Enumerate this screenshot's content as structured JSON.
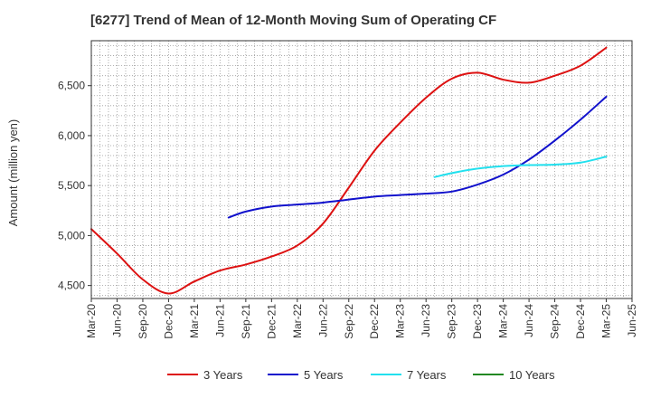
{
  "chart_data": {
    "type": "line",
    "title": "[6277]  Trend of Mean of 12-Month Moving Sum of Operating CF",
    "xlabel": "",
    "ylabel": "Amount (million yen)",
    "ylim": [
      4370,
      6950
    ],
    "yticks": [
      4500,
      5000,
      5500,
      6000,
      6500
    ],
    "ytick_labels": [
      "4,500",
      "5,000",
      "5,500",
      "6,000",
      "6,500"
    ],
    "x_categories": [
      "Mar-20",
      "Jun-20",
      "Sep-20",
      "Dec-20",
      "Mar-21",
      "Jun-21",
      "Sep-21",
      "Dec-21",
      "Mar-22",
      "Jun-22",
      "Sep-22",
      "Dec-22",
      "Mar-23",
      "Jun-23",
      "Sep-23",
      "Dec-23",
      "Mar-24",
      "Jun-24",
      "Sep-24",
      "Dec-24",
      "Mar-25",
      "Jun-25"
    ],
    "grid": true,
    "legend_position": "bottom",
    "series": [
      {
        "name": "3 Years",
        "color": "#dd1111",
        "points": [
          [
            0,
            5065
          ],
          [
            1,
            4820
          ],
          [
            2,
            4560
          ],
          [
            3,
            4420
          ],
          [
            4,
            4540
          ],
          [
            5,
            4650
          ],
          [
            6,
            4710
          ],
          [
            7,
            4790
          ],
          [
            8,
            4900
          ],
          [
            9,
            5120
          ],
          [
            10,
            5480
          ],
          [
            11,
            5850
          ],
          [
            12,
            6130
          ],
          [
            13,
            6380
          ],
          [
            14,
            6570
          ],
          [
            15,
            6630
          ],
          [
            16,
            6560
          ],
          [
            17,
            6530
          ],
          [
            18,
            6600
          ],
          [
            19,
            6700
          ],
          [
            20,
            6880
          ]
        ]
      },
      {
        "name": "5 Years",
        "color": "#1111cc",
        "points": [
          [
            5.33,
            5180
          ],
          [
            6,
            5240
          ],
          [
            7,
            5290
          ],
          [
            8,
            5310
          ],
          [
            9,
            5330
          ],
          [
            10,
            5360
          ],
          [
            11,
            5390
          ],
          [
            12,
            5405
          ],
          [
            13,
            5420
          ],
          [
            14,
            5440
          ],
          [
            15,
            5510
          ],
          [
            16,
            5610
          ],
          [
            17,
            5760
          ],
          [
            18,
            5950
          ],
          [
            19,
            6160
          ],
          [
            20,
            6390
          ]
        ]
      },
      {
        "name": "7 Years",
        "color": "#22e0ee",
        "points": [
          [
            13.33,
            5585
          ],
          [
            14,
            5625
          ],
          [
            15,
            5670
          ],
          [
            16,
            5695
          ],
          [
            17,
            5705
          ],
          [
            18,
            5710
          ],
          [
            19,
            5730
          ],
          [
            20,
            5790
          ]
        ]
      },
      {
        "name": "10 Years",
        "color": "#228822",
        "points": []
      }
    ]
  }
}
